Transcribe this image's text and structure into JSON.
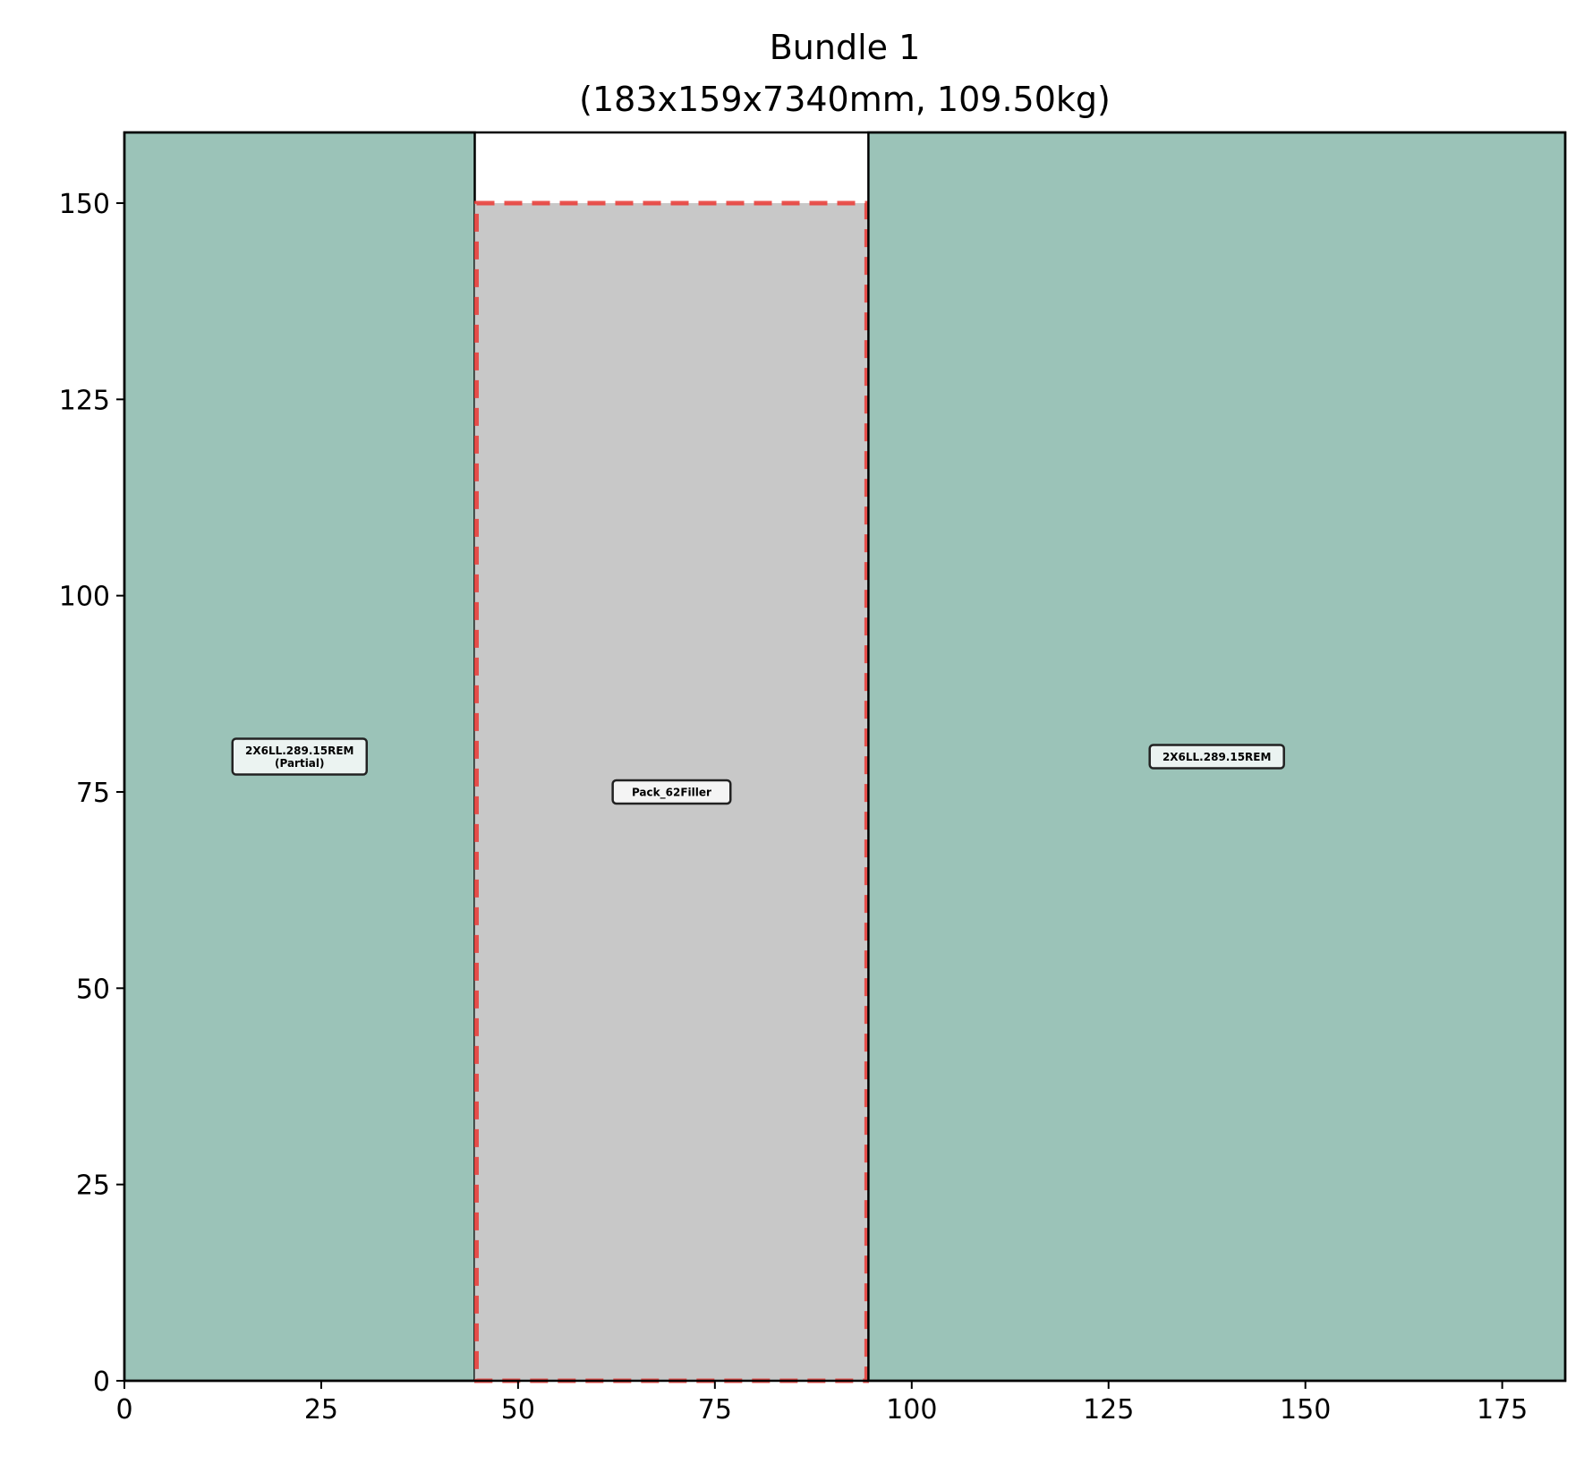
{
  "chart_data": {
    "type": "rectangle-layout",
    "title": "Bundle 1",
    "subtitle": "(183x159x7340mm, 109.50kg)",
    "xlabel": "",
    "ylabel": "",
    "xlim": [
      0,
      183
    ],
    "ylim": [
      0,
      159
    ],
    "xticks": [
      0,
      25,
      50,
      75,
      100,
      125,
      150,
      175
    ],
    "yticks": [
      0,
      25,
      50,
      75,
      100,
      125,
      150
    ],
    "grid": false,
    "colors": {
      "piece": "#9bc3b8",
      "filler": "#c8c8c8",
      "filler_outline": "#e8403c",
      "edge": "#000000"
    },
    "boxes": [
      {
        "kind": "piece",
        "x0": 0,
        "x1": 44.5,
        "y0": 0,
        "y1": 159,
        "label": [
          "2X6LL.289.15REM",
          "(Partial)"
        ]
      },
      {
        "kind": "filler",
        "x0": 44.5,
        "x1": 94.5,
        "y0": 0,
        "y1": 150,
        "label": [
          "Pack_62Filler"
        ]
      },
      {
        "kind": "piece",
        "x0": 94.5,
        "x1": 183,
        "y0": 0,
        "y1": 159,
        "label": [
          "2X6LL.289.15REM"
        ]
      }
    ]
  }
}
